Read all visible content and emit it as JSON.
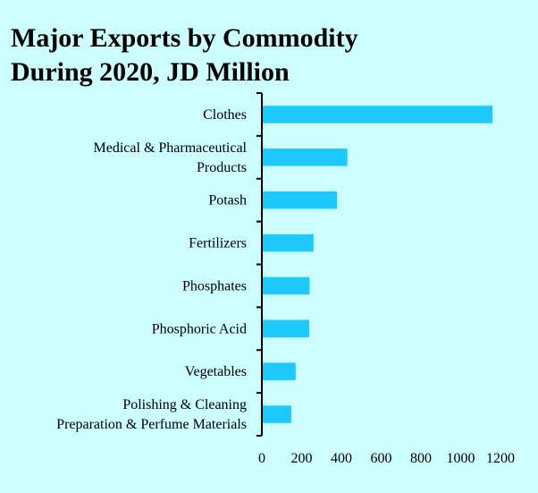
{
  "chart_data": {
    "type": "bar",
    "orientation": "horizontal",
    "title": [
      "Major Exports by Commodity",
      "During 2020, JD Million"
    ],
    "categories": [
      [
        "Clothes"
      ],
      [
        "Medical & Pharmaceutical",
        "Products"
      ],
      [
        "Potash"
      ],
      [
        "Fertilizers"
      ],
      [
        "Phosphates"
      ],
      [
        "Phosphoric Acid"
      ],
      [
        "Vegetables"
      ],
      [
        "Polishing & Cleaning",
        "Preparation & Perfume Materials"
      ]
    ],
    "values": [
      1160,
      430,
      378,
      260,
      240,
      238,
      170,
      148
    ],
    "xlim": [
      0,
      1200
    ],
    "xticks": [
      0,
      200,
      400,
      600,
      800,
      1000,
      1200
    ],
    "xlabel": "",
    "ylabel": "",
    "grid": false,
    "legend": "none",
    "bar_color": "#1ec9ff",
    "background_color": "#ccfdff"
  }
}
